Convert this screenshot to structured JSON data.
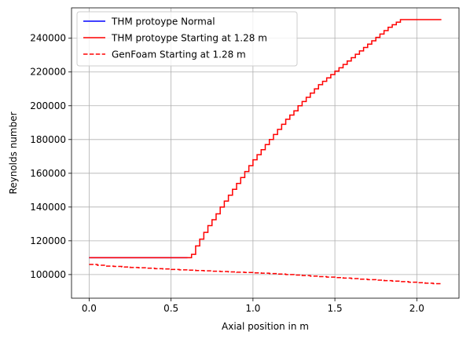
{
  "chart_data": {
    "type": "line",
    "title": "",
    "xlabel": "Axial position in m",
    "ylabel": "Reynolds number",
    "xlim": [
      -0.1075,
      2.2575
    ],
    "ylim": [
      86000,
      258000
    ],
    "xticks": [
      0.0,
      0.5,
      1.0,
      1.5,
      2.0
    ],
    "xtick_labels": [
      "0.0",
      "0.5",
      "1.0",
      "1.5",
      "2.0"
    ],
    "yticks": [
      100000,
      120000,
      140000,
      160000,
      180000,
      200000,
      220000,
      240000
    ],
    "ytick_labels": [
      "100000",
      "120000",
      "140000",
      "160000",
      "180000",
      "200000",
      "220000",
      "240000"
    ],
    "grid": true,
    "legend_position": "upper-left",
    "series": [
      {
        "name": "THM protoype Normal",
        "color": "#0000ff",
        "linestyle": "solid",
        "step": true,
        "x": [
          0.0,
          0.6
        ],
        "y": [
          110000,
          110000
        ]
      },
      {
        "name": "THM protoype Starting at 1.28 m",
        "color": "#ff0000",
        "linestyle": "solid",
        "step": true,
        "x": [
          0.0,
          0.6,
          0.625,
          0.65,
          0.675,
          0.7,
          0.725,
          0.75,
          0.775,
          0.8,
          0.825,
          0.85,
          0.875,
          0.9,
          0.925,
          0.95,
          0.975,
          1.0,
          1.025,
          1.05,
          1.075,
          1.1,
          1.125,
          1.15,
          1.175,
          1.2,
          1.225,
          1.25,
          1.275,
          1.3,
          1.325,
          1.35,
          1.375,
          1.4,
          1.425,
          1.45,
          1.475,
          1.5,
          1.525,
          1.55,
          1.575,
          1.6,
          1.625,
          1.65,
          1.675,
          1.7,
          1.725,
          1.75,
          1.775,
          1.8,
          1.825,
          1.85,
          1.875,
          1.9,
          1.925,
          1.95,
          1.975,
          2.0,
          2.025,
          2.05,
          2.075,
          2.1,
          2.125,
          2.15
        ],
        "y": [
          110000,
          110000,
          112000,
          117000,
          121000,
          125000,
          129000,
          132500,
          136000,
          140000,
          143500,
          147000,
          150500,
          154000,
          157500,
          161000,
          164500,
          168000,
          171000,
          174000,
          177000,
          180000,
          183000,
          186000,
          189000,
          192000,
          194500,
          197000,
          200000,
          202500,
          205000,
          207500,
          210000,
          212500,
          214500,
          216500,
          218500,
          220500,
          222500,
          224500,
          226500,
          228500,
          230500,
          232500,
          234500,
          236500,
          238500,
          240500,
          242500,
          244500,
          246500,
          248000,
          249500,
          251000,
          251000,
          251000,
          251000,
          251000,
          251000,
          251000,
          251000,
          251000,
          251000,
          251000
        ]
      },
      {
        "name": "GenFoam Starting at 1.28 m",
        "color": "#ff0000",
        "linestyle": "dashed",
        "step": true,
        "x": [
          0.0,
          0.05,
          0.1,
          0.15,
          0.2,
          0.25,
          0.3,
          0.35,
          0.4,
          0.45,
          0.5,
          0.55,
          0.6,
          0.65,
          0.7,
          0.75,
          0.8,
          0.85,
          0.9,
          0.95,
          1.0,
          1.05,
          1.1,
          1.15,
          1.2,
          1.25,
          1.3,
          1.35,
          1.4,
          1.45,
          1.5,
          1.55,
          1.6,
          1.65,
          1.7,
          1.75,
          1.8,
          1.85,
          1.9,
          1.95,
          2.0,
          2.05,
          2.1,
          2.15
        ],
        "y": [
          106000,
          105500,
          105000,
          104800,
          104500,
          104200,
          104000,
          103800,
          103500,
          103300,
          103000,
          102800,
          102600,
          102400,
          102200,
          102000,
          101800,
          101600,
          101400,
          101200,
          101000,
          100800,
          100600,
          100300,
          100000,
          99700,
          99400,
          99100,
          98800,
          98500,
          98200,
          97900,
          97600,
          97300,
          97000,
          96700,
          96400,
          96100,
          95800,
          95500,
          95200,
          94900,
          94600,
          94300
        ]
      }
    ]
  }
}
